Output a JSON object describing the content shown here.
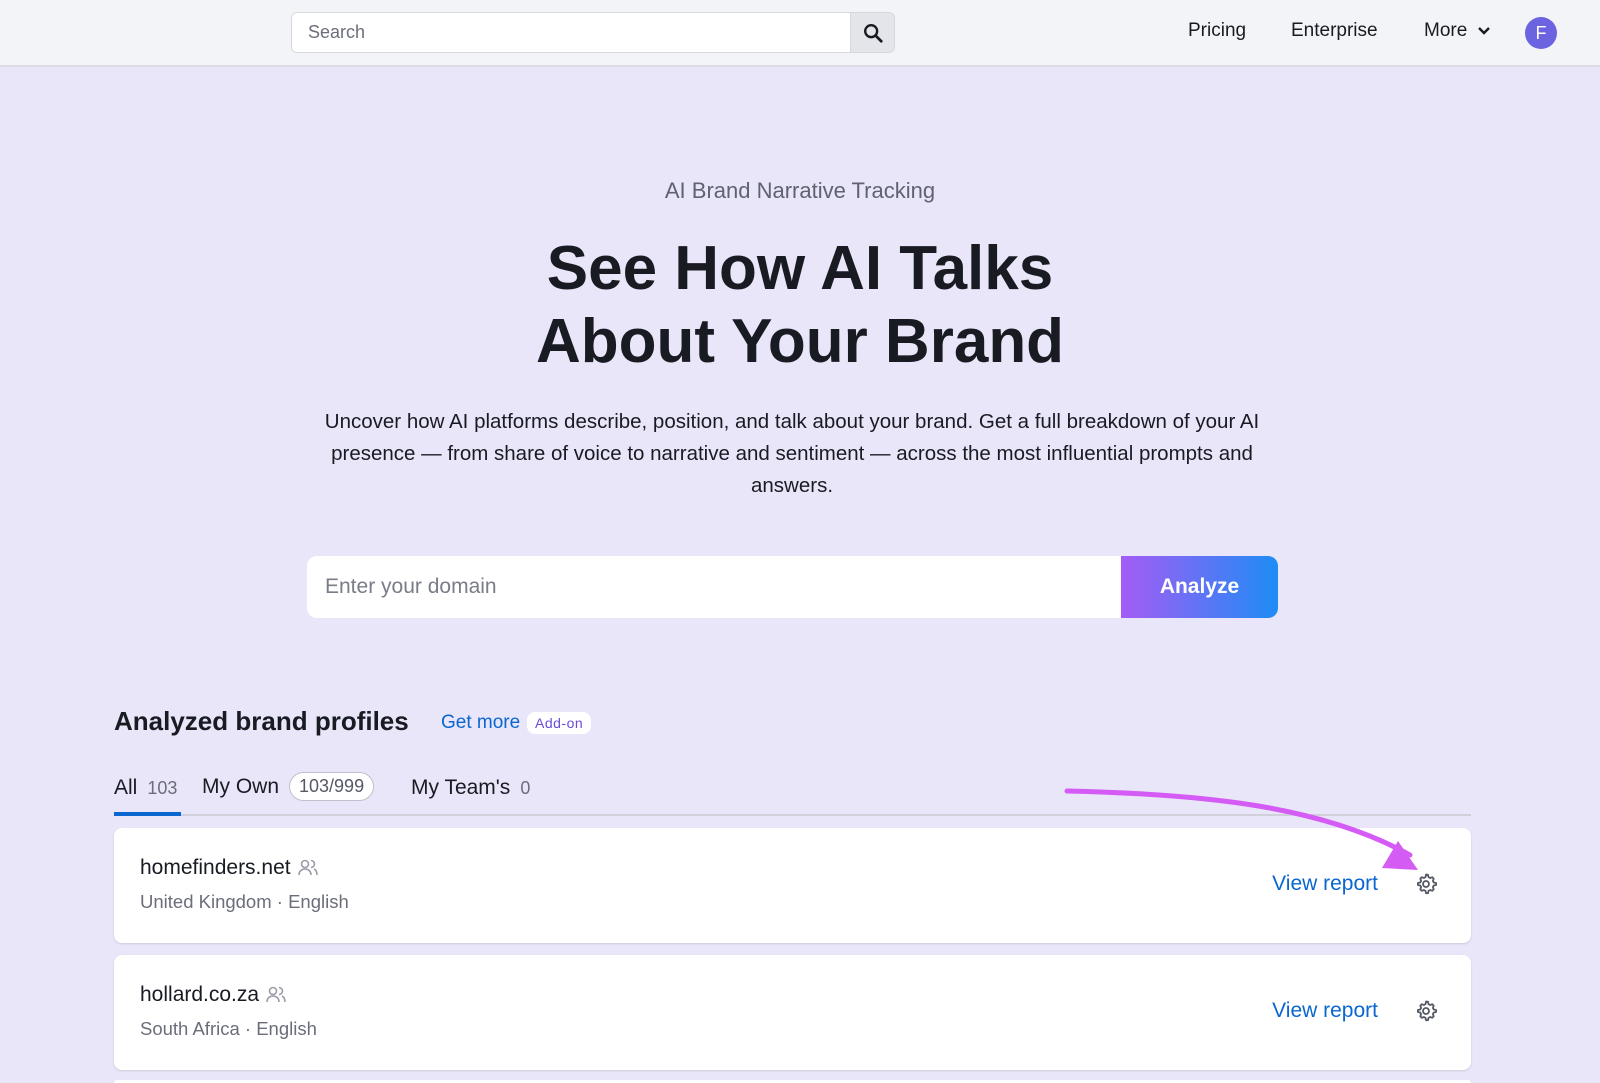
{
  "header": {
    "search_placeholder": "Search",
    "nav": [
      "Pricing",
      "Enterprise",
      "More"
    ],
    "avatar_initial": "F"
  },
  "hero": {
    "kicker": "AI Brand Narrative Tracking",
    "title_line1": "See How AI Talks",
    "title_line2": "About Your Brand",
    "description": "Uncover how AI platforms describe, position, and talk about your brand. Get a full breakdown of your AI presence — from share of voice to narrative and sentiment — across the most influential prompts and answers.",
    "domain_placeholder": "Enter your domain",
    "analyze_label": "Analyze"
  },
  "profiles": {
    "title": "Analyzed brand profiles",
    "get_more": "Get more",
    "addon_badge": "Add-on",
    "tabs": [
      {
        "label": "All",
        "count": "103"
      },
      {
        "label": "My Own",
        "count": "103/999"
      },
      {
        "label": "My Team's",
        "count": "0"
      }
    ],
    "items": [
      {
        "domain": "homefinders.net",
        "meta": "United Kingdom · English",
        "action": "View report"
      },
      {
        "domain": "hollard.co.za",
        "meta": "South Africa · English",
        "action": "View report"
      }
    ]
  },
  "colors": {
    "accent": "#0a67d0",
    "annotation_arrow": "#d45cf5",
    "avatar": "#6c63e0"
  }
}
